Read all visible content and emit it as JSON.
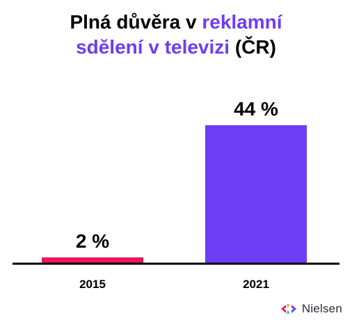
{
  "title": {
    "line1_a": "Plná důvěra v ",
    "line1_b": "reklamní",
    "line2_a": "sdělení v televizi",
    "line2_b": " (ČR)"
  },
  "chart_data": {
    "type": "bar",
    "categories": [
      "2015",
      "2021"
    ],
    "values": [
      2,
      44
    ],
    "value_labels": [
      "2 %",
      "44 %"
    ],
    "bar_colors": [
      "#e8195a",
      "#6e3cf7"
    ],
    "ylim": [
      0,
      44
    ],
    "grid": false,
    "legend": "none"
  },
  "colors": {
    "accent": "#6e3cf7",
    "bar_2015": "#e8195a",
    "bar_2021": "#6e3cf7"
  },
  "brand": {
    "name": "Nielsen",
    "icon": "nielsen-logo-icon"
  }
}
